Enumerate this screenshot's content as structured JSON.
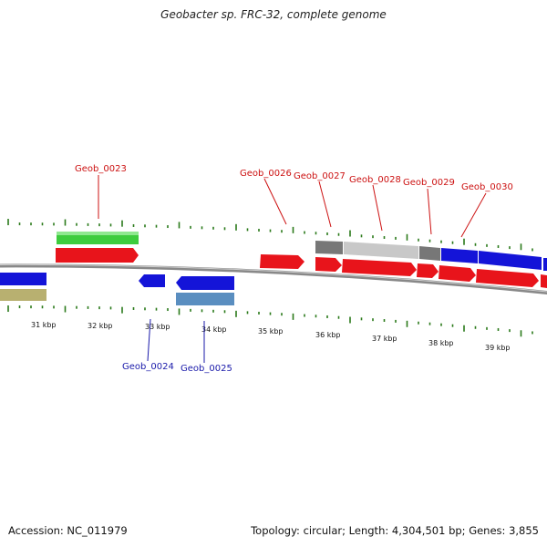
{
  "title": "Geobacter sp. FRC-32, complete genome",
  "footer": {
    "accession": "Accession: NC_011979",
    "summary": "Topology: circular; Length: 4,304,501 bp; Genes: 3,855"
  },
  "scale_labels": [
    "31 kbp",
    "32 kbp",
    "33 kbp",
    "34 kbp",
    "35 kbp",
    "36 kbp",
    "37 kbp",
    "38 kbp",
    "39 kbp"
  ],
  "gene_labels_top": [
    "Geob_0023",
    "Geob_0026",
    "Geob_0027",
    "Geob_0028",
    "Geob_0029",
    "Geob_0030"
  ],
  "gene_labels_bottom": [
    "Geob_0024",
    "Geob_0025"
  ],
  "colors": {
    "forward_cds": "#e8141b",
    "reverse_cds": "#1414d8",
    "label_top": "#cc1111",
    "label_bottom": "#1a1aaa",
    "green_feature": "#3dcc3d",
    "olive_feature": "#b8b070",
    "steelblue_feature": "#5a8ec0",
    "grey_feature": "#777777",
    "lightgrey_feature": "#c8c8c8",
    "tick": "#2a7a1a",
    "backbone": "#888888"
  }
}
